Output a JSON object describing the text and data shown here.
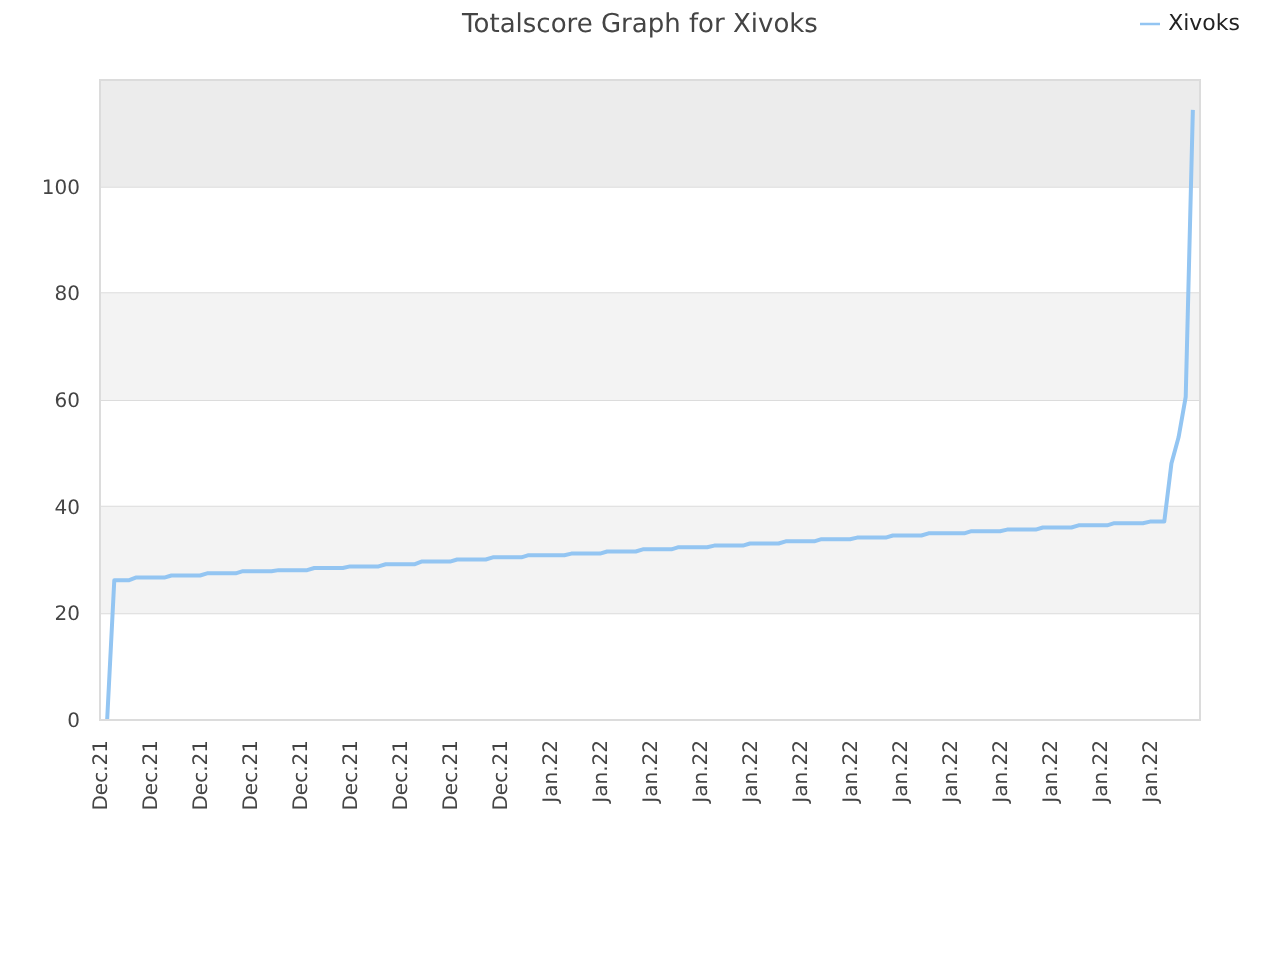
{
  "chart_data": {
    "type": "line",
    "title": "Totalscore Graph for Xivoks",
    "categories": [
      "Dec.21",
      null,
      null,
      null,
      null,
      null,
      null,
      "Dec.21",
      null,
      null,
      null,
      null,
      null,
      null,
      "Dec.21",
      null,
      null,
      null,
      null,
      null,
      null,
      "Dec.21",
      null,
      null,
      null,
      null,
      null,
      null,
      "Dec.21",
      null,
      null,
      null,
      null,
      null,
      null,
      "Dec.21",
      null,
      null,
      null,
      null,
      null,
      null,
      "Dec.21",
      null,
      null,
      null,
      null,
      null,
      null,
      "Dec.21",
      null,
      null,
      null,
      null,
      null,
      null,
      "Dec.21",
      null,
      null,
      null,
      null,
      null,
      null,
      "Jan.22",
      null,
      null,
      null,
      null,
      null,
      null,
      "Jan.22",
      null,
      null,
      null,
      null,
      null,
      null,
      "Jan.22",
      null,
      null,
      null,
      null,
      null,
      null,
      "Jan.22",
      null,
      null,
      null,
      null,
      null,
      null,
      "Jan.22",
      null,
      null,
      null,
      null,
      null,
      null,
      "Jan.22",
      null,
      null,
      null,
      null,
      null,
      null,
      "Jan.22",
      null,
      null,
      null,
      null,
      null,
      null,
      "Jan.22",
      null,
      null,
      null,
      null,
      null,
      null,
      "Jan.22",
      null,
      null,
      null,
      null,
      null,
      null,
      "Jan.22",
      null,
      null,
      null,
      null,
      null,
      null,
      "Jan.22",
      null,
      null,
      null,
      null,
      null,
      null,
      "Jan.22",
      null,
      null,
      null,
      null,
      null,
      null,
      "Jan.22",
      null,
      null,
      null,
      null,
      null,
      null,
      null
    ],
    "series": [
      {
        "name": "Xivoks",
        "color": "#93c5f2",
        "values": [
          null,
          0,
          26.2,
          26.2,
          26.2,
          26.7,
          26.7,
          26.7,
          26.7,
          26.7,
          27.1,
          27.1,
          27.1,
          27.1,
          27.1,
          27.5,
          27.5,
          27.5,
          27.5,
          27.5,
          27.9,
          27.9,
          27.9,
          27.9,
          27.9,
          28.1,
          28.1,
          28.1,
          28.1,
          28.1,
          28.5,
          28.5,
          28.5,
          28.5,
          28.5,
          28.8,
          28.8,
          28.8,
          28.8,
          28.8,
          29.2,
          29.2,
          29.2,
          29.2,
          29.2,
          29.7,
          29.7,
          29.7,
          29.7,
          29.7,
          30.1,
          30.1,
          30.1,
          30.1,
          30.1,
          30.5,
          30.5,
          30.5,
          30.5,
          30.5,
          30.9,
          30.9,
          30.9,
          30.9,
          30.9,
          30.9,
          31.2,
          31.2,
          31.2,
          31.2,
          31.2,
          31.6,
          31.6,
          31.6,
          31.6,
          31.6,
          32.0,
          32.0,
          32.0,
          32.0,
          32.0,
          32.4,
          32.4,
          32.4,
          32.4,
          32.4,
          32.7,
          32.7,
          32.7,
          32.7,
          32.7,
          33.1,
          33.1,
          33.1,
          33.1,
          33.1,
          33.5,
          33.5,
          33.5,
          33.5,
          33.5,
          33.9,
          33.9,
          33.9,
          33.9,
          33.9,
          34.2,
          34.2,
          34.2,
          34.2,
          34.2,
          34.6,
          34.6,
          34.6,
          34.6,
          34.6,
          35.0,
          35.0,
          35.0,
          35.0,
          35.0,
          35.0,
          35.4,
          35.4,
          35.4,
          35.4,
          35.4,
          35.7,
          35.7,
          35.7,
          35.7,
          35.7,
          36.1,
          36.1,
          36.1,
          36.1,
          36.1,
          36.5,
          36.5,
          36.5,
          36.5,
          36.5,
          36.9,
          36.9,
          36.9,
          36.9,
          36.9,
          37.2,
          37.2,
          37.2,
          48.1,
          53.0,
          60.6,
          114.4,
          null
        ]
      }
    ],
    "ylim": [
      0,
      120
    ],
    "yticks": [
      0,
      20,
      40,
      60,
      80,
      100
    ],
    "grid": "y",
    "legend": "top right",
    "marker": "none",
    "bands": [
      {
        "axis": "y",
        "from": 20,
        "to": 40,
        "color": "#f3f3f3"
      },
      {
        "axis": "y",
        "from": 60,
        "to": 80,
        "color": "#f3f3f3"
      },
      {
        "axis": "y",
        "from": 100,
        "to": 120,
        "color": "#ececec"
      }
    ]
  }
}
